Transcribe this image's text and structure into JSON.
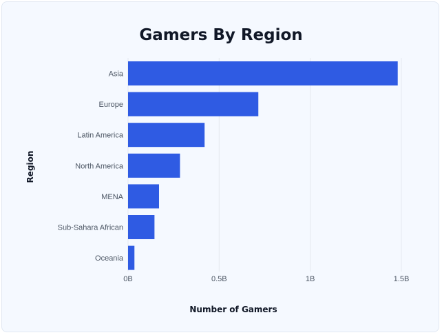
{
  "chart_data": {
    "type": "bar",
    "orientation": "horizontal",
    "title": "Gamers By Region",
    "xlabel": "Number of Gamers",
    "ylabel": "Region",
    "categories": [
      "Asia",
      "Europe",
      "Latin America",
      "North America",
      "MENA",
      "Sub-Sahara African",
      "Oceania"
    ],
    "values": [
      1.48,
      0.715,
      0.42,
      0.285,
      0.17,
      0.145,
      0.035
    ],
    "value_unit": "billion gamers",
    "xlim": [
      0,
      1.5
    ],
    "ticks": [
      {
        "value": 0,
        "label": "0B"
      },
      {
        "value": 0.5,
        "label": "0.5B"
      },
      {
        "value": 1,
        "label": "1B"
      },
      {
        "value": 1.5,
        "label": "1.5B"
      }
    ],
    "grid": true,
    "legend": "none",
    "bar_color": "#2f5be3"
  }
}
